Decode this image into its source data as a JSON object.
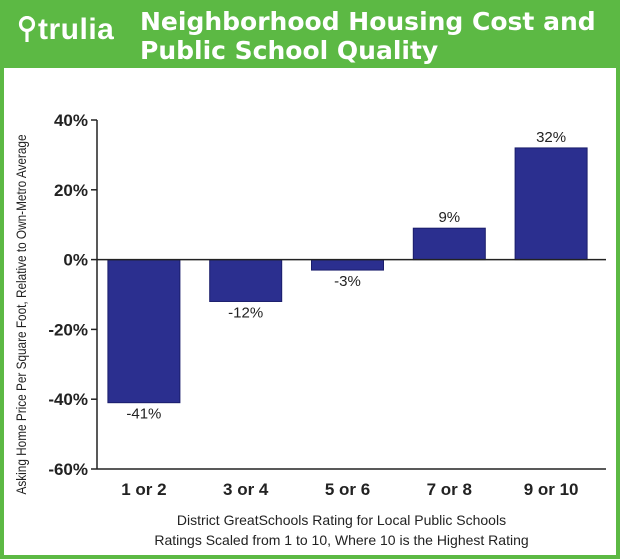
{
  "header": {
    "logo_text": "trulia",
    "title_line1": "Neighborhood Housing Cost and",
    "title_line2": "Public School Quality"
  },
  "colors": {
    "brand_green": "#5cb944",
    "bar": "#2b2f8f",
    "axis": "#222222"
  },
  "chart_data": {
    "type": "bar",
    "categories": [
      "1 or 2",
      "3 or 4",
      "5 or 6",
      "7 or 8",
      "9 or 10"
    ],
    "values": [
      -41,
      -12,
      -3,
      9,
      32
    ],
    "value_labels": [
      "-41%",
      "-12%",
      "-3%",
      "9%",
      "32%"
    ],
    "ylabel": "Asking Home Price Per Square Foot, Relative to Own-Metro Average",
    "xlabel_line1": "District GreatSchools Rating for Local Public Schools",
    "xlabel_line2": "Ratings Scaled from 1 to 10, Where 10 is the Highest Rating",
    "ylim": [
      -60,
      40
    ],
    "yticks": [
      40,
      20,
      0,
      -20,
      -40,
      -60
    ],
    "ytick_labels": [
      "40%",
      "20%",
      "0%",
      "-20%",
      "-40%",
      "-60%"
    ],
    "grid": false
  }
}
